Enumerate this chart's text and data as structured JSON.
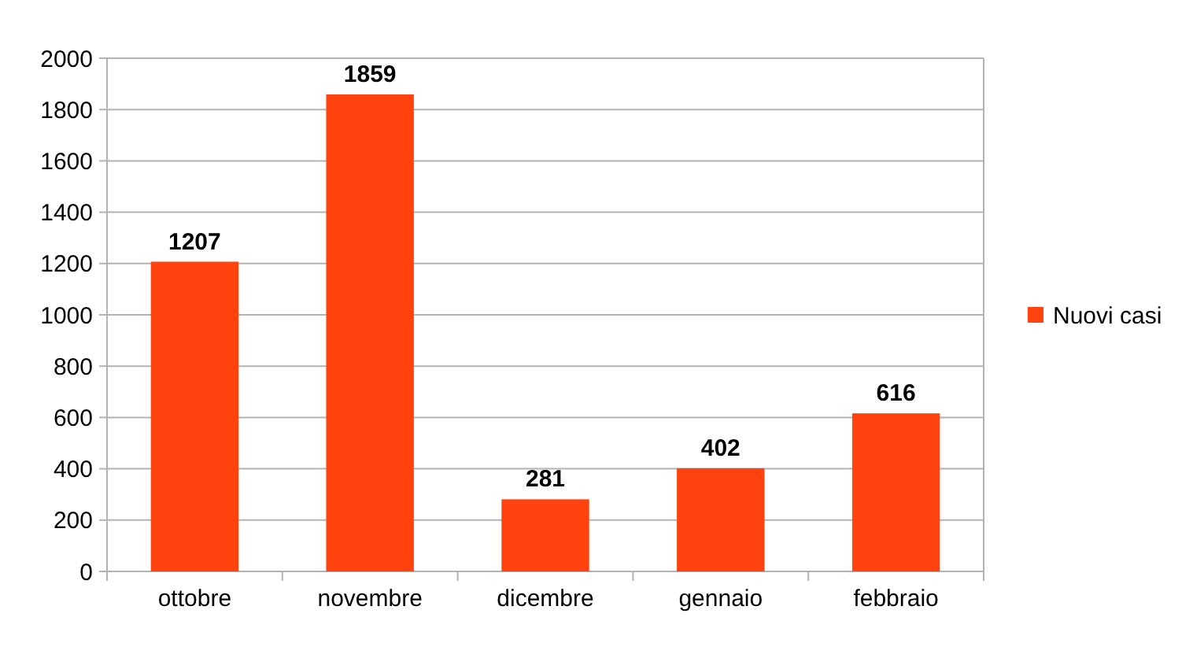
{
  "chart_data": {
    "type": "bar",
    "categories": [
      "ottobre",
      "novembre",
      "dicembre",
      "gennaio",
      "febbraio"
    ],
    "series": [
      {
        "name": "Nuovi casi",
        "color": "#ff420e",
        "values": [
          1207,
          1859,
          281,
          402,
          616
        ]
      }
    ],
    "ylim": [
      0,
      2000
    ],
    "yticks": [
      0,
      200,
      400,
      600,
      800,
      1000,
      1200,
      1400,
      1600,
      1800,
      2000
    ],
    "grid": "y",
    "legend": "right",
    "data_labels": true
  }
}
